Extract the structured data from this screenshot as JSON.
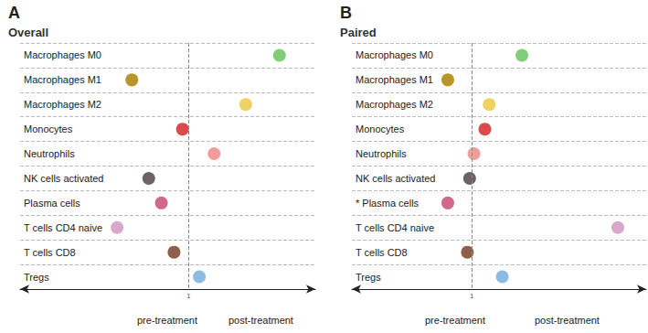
{
  "chart_data": [
    {
      "type": "scatter",
      "title": "A",
      "subtitle": "Overall",
      "categories": [
        "Macrophages M0",
        "Macrophages M1",
        "Macrophages M2",
        "Monocytes",
        "Neutrophils",
        "NK cells activated",
        "Plasma cells",
        "T cells CD4 naive",
        "T cells CD8",
        "Tregs"
      ],
      "values": [
        1.43,
        0.73,
        1.27,
        0.97,
        1.12,
        0.81,
        0.87,
        0.66,
        0.93,
        1.05
      ],
      "colors": [
        "#7fcf76",
        "#b8962a",
        "#f0d264",
        "#de4a4c",
        "#f39c9c",
        "#6e6266",
        "#d0688a",
        "#d8a8cf",
        "#8e604c",
        "#8dbbe3"
      ],
      "xlim": [
        0.2,
        1.6
      ],
      "xticks": [
        1
      ],
      "grid": true,
      "annotations": [
        "pre-treatment",
        "post-treatment"
      ]
    },
    {
      "type": "scatter",
      "title": "B",
      "subtitle": "Paired",
      "categories": [
        "Macrophages M0",
        "Macrophages M1",
        "Macrophages M2",
        "Monocytes",
        "Neutrophils",
        "NK cells activated",
        "* Plasma cells",
        "T cells CD4 naive",
        "T cells CD8",
        "Tregs"
      ],
      "values": [
        1.23,
        0.89,
        1.08,
        1.06,
        1.01,
        0.99,
        0.89,
        1.67,
        0.98,
        1.14
      ],
      "colors": [
        "#7fcf76",
        "#b8962a",
        "#f0d264",
        "#de4a4c",
        "#f39c9c",
        "#6e6266",
        "#d0688a",
        "#d8a8cf",
        "#8e604c",
        "#8dbbe3"
      ],
      "xlim": [
        0.45,
        1.8
      ],
      "xticks": [
        1
      ],
      "grid": true,
      "annotations": [
        "pre-treatment",
        "post-treatment"
      ]
    }
  ]
}
